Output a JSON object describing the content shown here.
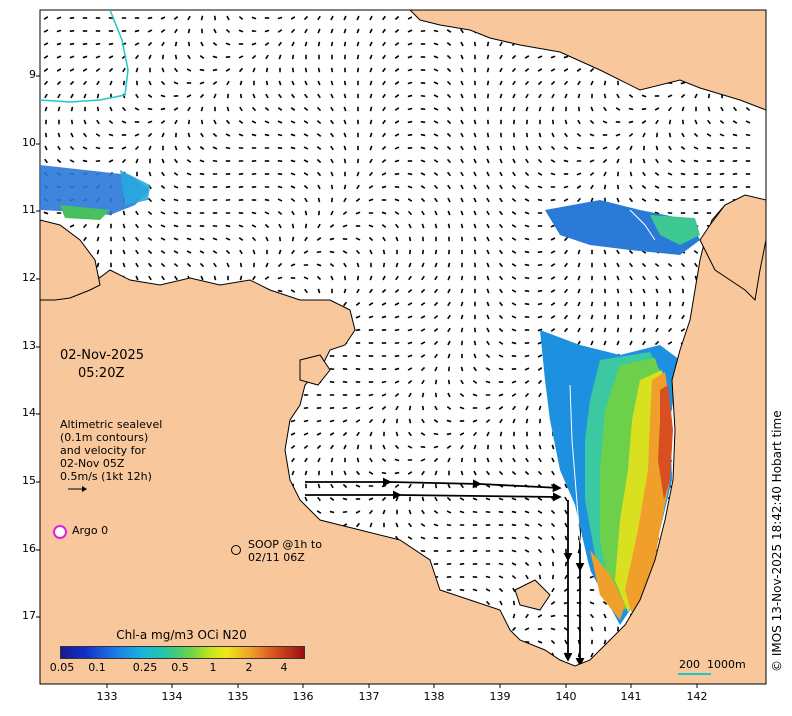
{
  "map": {
    "date": "02-Nov-2025",
    "time": "05:20Z",
    "legend_lines": [
      "Altimetric sealevel",
      "(0.1m contours)",
      "and velocity for",
      "02-Nov 05Z",
      "0.5m/s (1kt 12h)"
    ],
    "argo_label": "Argo 0",
    "soop_label_1": "SOOP @1h to",
    "soop_label_2": "02/11 06Z",
    "colorbar_title": "Chl-a mg/m3 OCi N20",
    "colorbar_ticks": [
      "0.05",
      "0.1",
      "0.25",
      "0.5",
      "1",
      "2",
      "4"
    ],
    "x_ticks": [
      "133",
      "134",
      "135",
      "136",
      "137",
      "138",
      "139",
      "140",
      "141",
      "142"
    ],
    "y_ticks": [
      "9",
      "10",
      "11",
      "12",
      "13",
      "14",
      "15",
      "16",
      "17"
    ],
    "scale_label": "200  1000m",
    "copyright": "© IMOS 13-Nov-2025 18:42:40 Hobart time",
    "colors": {
      "land": "#f8c89c",
      "ocean": "#ffffff",
      "argo": "#e020e0",
      "contour": "#20c8c8"
    }
  }
}
